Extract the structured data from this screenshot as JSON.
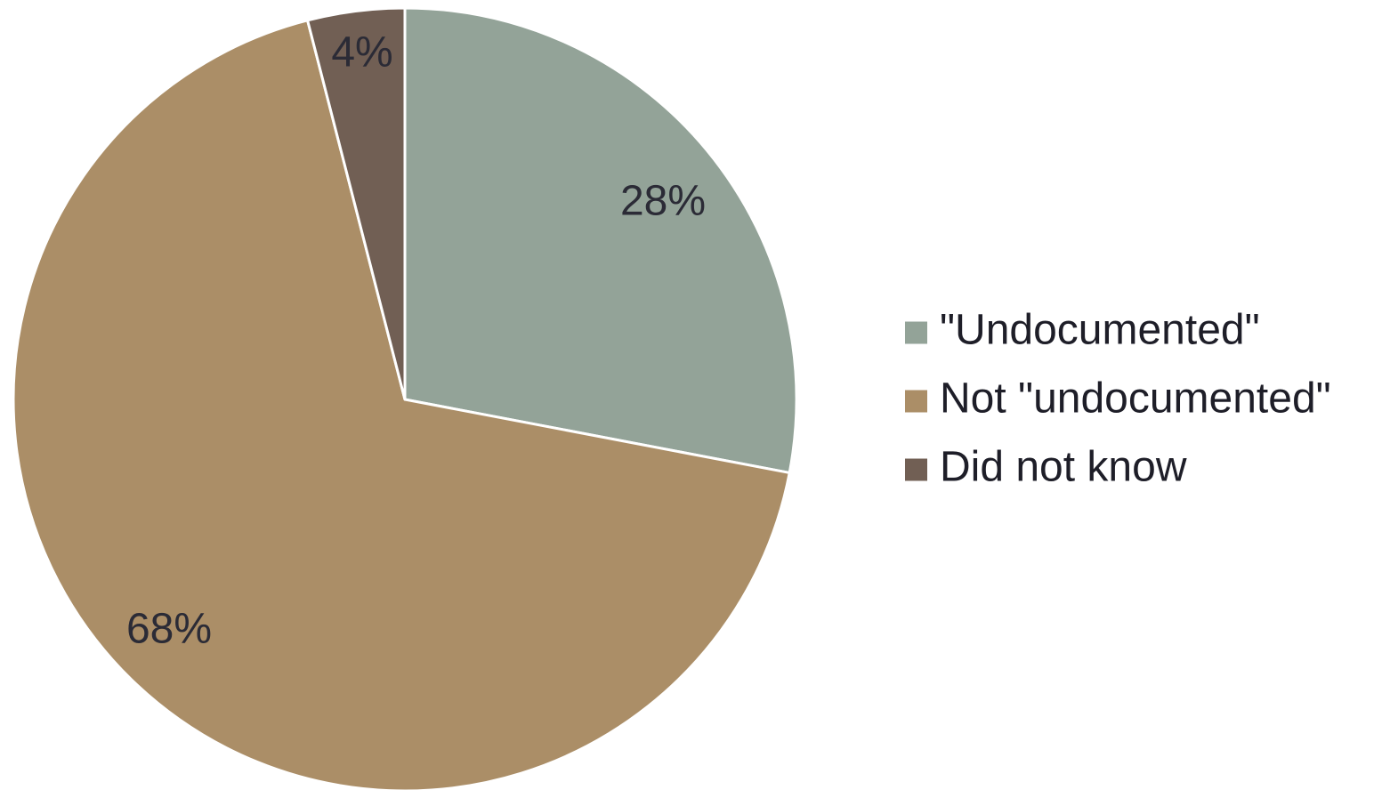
{
  "chart_data": {
    "type": "pie",
    "title": "",
    "slices": [
      {
        "label": "\"Undocumented\"",
        "value": 28,
        "value_label": "28%",
        "color": "#93a398"
      },
      {
        "label": "Not \"undocumented\"",
        "value": 68,
        "value_label": "68%",
        "color": "#ab8e67"
      },
      {
        "label": "Did not know",
        "value": 4,
        "value_label": "4%",
        "color": "#715f54"
      }
    ],
    "legend_placement": "right",
    "start_angle": "12 o'clock",
    "direction": "clockwise"
  }
}
